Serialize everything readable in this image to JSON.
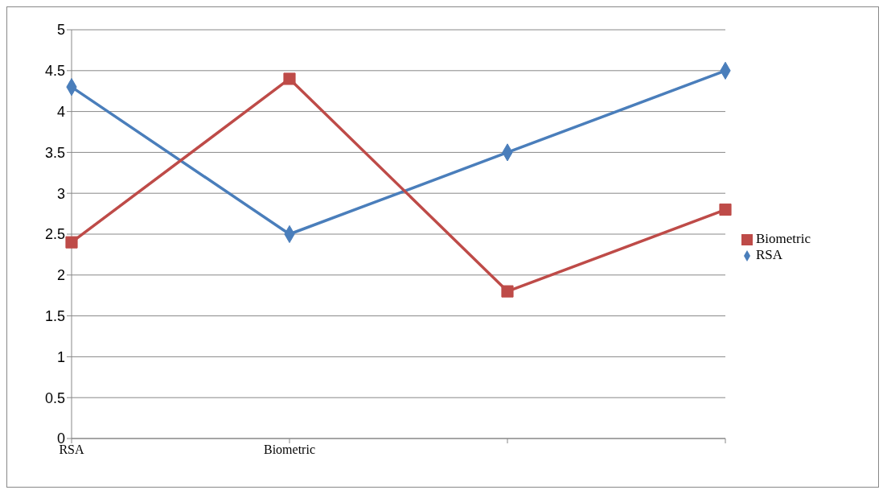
{
  "chart_data": {
    "type": "line",
    "categories": [
      "RSA",
      "Biometric",
      null,
      null
    ],
    "series": [
      {
        "name": "RSA",
        "color": "#4a7ebb",
        "values": [
          4.3,
          2.5,
          3.5,
          4.5
        ],
        "marker": "diamond"
      },
      {
        "name": "Biometric",
        "color": "#be4b48",
        "values": [
          2.4,
          4.4,
          1.8,
          2.8
        ],
        "marker": "square"
      }
    ],
    "ylim": [
      0,
      5
    ],
    "yticks": [
      0,
      0.5,
      1,
      1.5,
      2,
      2.5,
      3,
      3.5,
      4,
      4.5,
      5
    ],
    "grid": "y",
    "legend": "right",
    "line_style": "solid"
  }
}
